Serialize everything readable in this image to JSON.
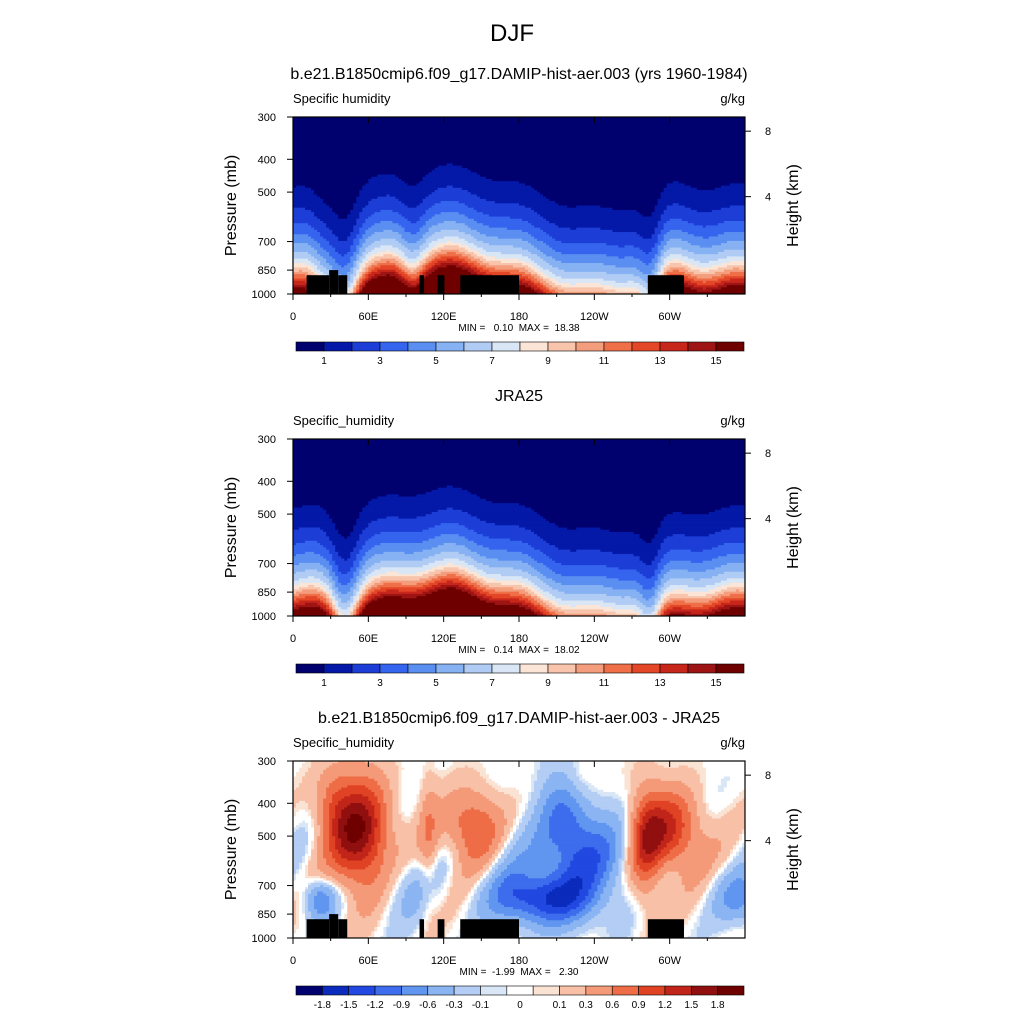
{
  "page_title": "DJF",
  "colors": {
    "abs_levels": [
      "#00006e",
      "#0419a8",
      "#1c3ed6",
      "#3564ee",
      "#5a8ef0",
      "#86b1f2",
      "#b1ccf4",
      "#d8e6f6",
      "#fbe5d6",
      "#f8c4ab",
      "#f49d7c",
      "#ef6f49",
      "#e34727",
      "#c7261b",
      "#9e1414",
      "#6e0000"
    ],
    "diff_levels": [
      "#00006e",
      "#0b2bbd",
      "#2148e0",
      "#3d6ded",
      "#6196f0",
      "#8ab5f2",
      "#b3cdf4",
      "#d8e6f6",
      "#ffffff",
      "#fbe3d4",
      "#f8c0a6",
      "#f49a78",
      "#ee6c46",
      "#e04224",
      "#c12419",
      "#900f0f",
      "#6e0000"
    ]
  },
  "chart_data": [
    {
      "type": "heatmap",
      "title": "b.e21.B1850cmip6.f09_g17.DAMIP-hist-aer.003 (yrs 1960-1984)",
      "variable_label": "Specific humidity",
      "units": "g/kg",
      "ylabel": "Pressure (mb)",
      "y2label": "Height (km)",
      "x_ticks": [
        "0",
        "60E",
        "120E",
        "180",
        "120W",
        "60W"
      ],
      "y_ticks": [
        "300",
        "400",
        "500",
        "700",
        "850",
        "1000"
      ],
      "y2_ticks": [
        "8",
        "4"
      ],
      "min_max": "MIN =   0.10  MAX =  18.38",
      "colorbar_labels": [
        "1",
        "3",
        "5",
        "7",
        "9",
        "11",
        "13",
        "15"
      ],
      "terrain": true
    },
    {
      "type": "heatmap",
      "title": "JRA25",
      "variable_label": "Specific_humidity",
      "units": "g/kg",
      "ylabel": "Pressure (mb)",
      "y2label": "Height (km)",
      "x_ticks": [
        "0",
        "60E",
        "120E",
        "180",
        "120W",
        "60W"
      ],
      "y_ticks": [
        "300",
        "400",
        "500",
        "700",
        "850",
        "1000"
      ],
      "y2_ticks": [
        "8",
        "4"
      ],
      "min_max": "MIN =   0.14  MAX =  18.02",
      "colorbar_labels": [
        "1",
        "3",
        "5",
        "7",
        "9",
        "11",
        "13",
        "15"
      ],
      "terrain": false
    },
    {
      "type": "heatmap",
      "title": "b.e21.B1850cmip6.f09_g17.DAMIP-hist-aer.003 - JRA25",
      "variable_label": "Specific_humidity",
      "units": "g/kg",
      "ylabel": "Pressure (mb)",
      "y2label": "Height (km)",
      "x_ticks": [
        "0",
        "60E",
        "120E",
        "180",
        "120W",
        "60W"
      ],
      "y_ticks": [
        "300",
        "400",
        "500",
        "700",
        "850",
        "1000"
      ],
      "y2_ticks": [
        "8",
        "4"
      ],
      "min_max": "MIN =  -1.99  MAX =   2.30",
      "colorbar_labels": [
        "-1.8",
        "-1.5",
        "-1.2",
        "-0.9",
        "-0.6",
        "-0.3",
        "-0.1",
        "0",
        "0.1",
        "0.3",
        "0.6",
        "0.9",
        "1.2",
        "1.5",
        "1.8"
      ],
      "terrain": true
    }
  ]
}
